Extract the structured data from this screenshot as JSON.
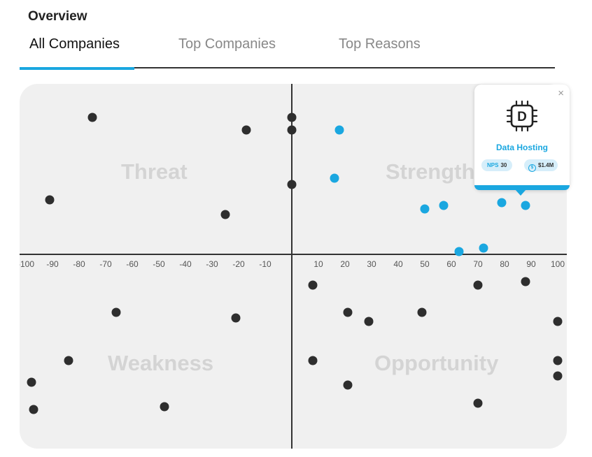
{
  "header": {
    "title": "Overview"
  },
  "tabs": [
    {
      "label": "All Companies",
      "active": true
    },
    {
      "label": "Top Companies",
      "active": false
    },
    {
      "label": "Top Reasons",
      "active": false
    }
  ],
  "quadrants": {
    "top_left": "Threat",
    "top_right": "Strength",
    "bottom_left": "Weakness",
    "bottom_right": "Opportunity"
  },
  "x_ticks": [
    "-100",
    "-90",
    "-80",
    "-70",
    "-60",
    "-50",
    "-40",
    "-30",
    "-20",
    "-10",
    "10",
    "20",
    "30",
    "40",
    "50",
    "60",
    "70",
    "80",
    "90",
    "100"
  ],
  "popup": {
    "icon": "chip-icon",
    "icon_letter": "D",
    "name": "Data Hosting",
    "nps_label": "NPS",
    "nps_value": "30",
    "revenue": "$1.4M",
    "close": "×"
  },
  "colors": {
    "accent": "#1aa7e0",
    "dark_point": "#2e2e2e",
    "plot_bg": "#f0f0f0"
  },
  "chart_data": {
    "type": "scatter",
    "xlim": [
      -100,
      100
    ],
    "series": [
      {
        "color": "#2e2e2e",
        "points": [
          {
            "x": -75,
            "y": 45
          },
          {
            "x": -91,
            "y": 18
          },
          {
            "x": -17,
            "y": 41
          },
          {
            "x": 0,
            "y": 45
          },
          {
            "x": 0,
            "y": 41
          },
          {
            "x": 0,
            "y": 23
          },
          {
            "x": -25,
            "y": 13
          },
          {
            "x": 8,
            "y": -10
          },
          {
            "x": 70,
            "y": -10
          },
          {
            "x": 88,
            "y": -9
          },
          {
            "x": -66,
            "y": -19
          },
          {
            "x": -21,
            "y": -21
          },
          {
            "x": 21,
            "y": -19
          },
          {
            "x": 29,
            "y": -22
          },
          {
            "x": 49,
            "y": -19
          },
          {
            "x": 100,
            "y": -22
          },
          {
            "x": -84,
            "y": -35
          },
          {
            "x": 8,
            "y": -35
          },
          {
            "x": 100,
            "y": -35
          },
          {
            "x": 100,
            "y": -40
          },
          {
            "x": -98,
            "y": -42
          },
          {
            "x": 21,
            "y": -43
          },
          {
            "x": -97,
            "y": -51
          },
          {
            "x": -48,
            "y": -50
          },
          {
            "x": 70,
            "y": -49
          }
        ]
      },
      {
        "color": "#1aa7e0",
        "points": [
          {
            "x": 18,
            "y": 41
          },
          {
            "x": 16,
            "y": 25
          },
          {
            "x": 50,
            "y": 15
          },
          {
            "x": 57,
            "y": 16
          },
          {
            "x": 79,
            "y": 17
          },
          {
            "x": 88,
            "y": 16
          },
          {
            "x": 63,
            "y": 1
          },
          {
            "x": 72,
            "y": 2
          }
        ]
      }
    ]
  }
}
